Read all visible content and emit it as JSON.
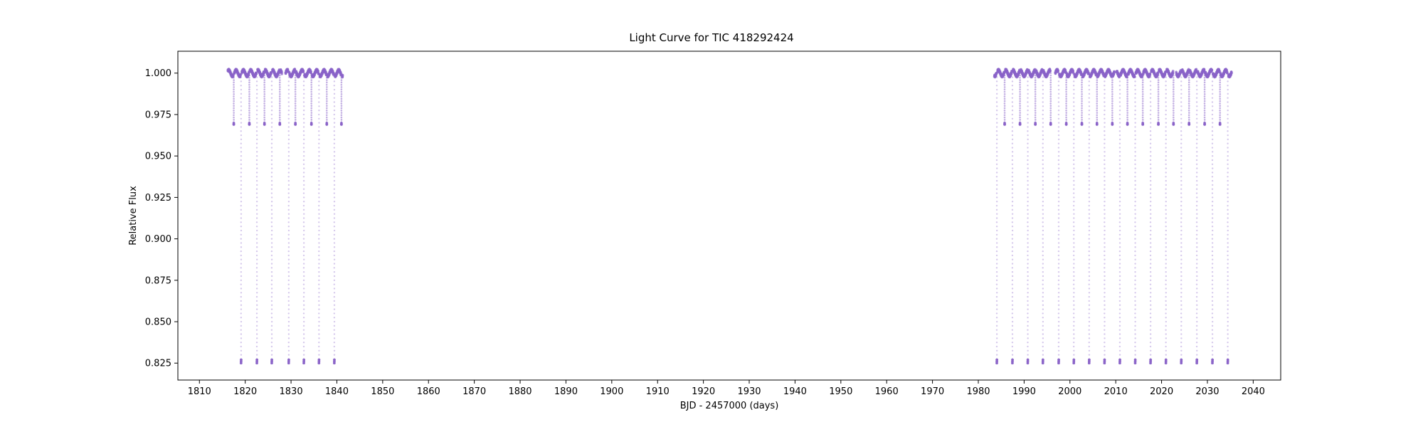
{
  "chart_data": {
    "type": "scatter",
    "title": "Light Curve for TIC 418292424",
    "xlabel": "BJD - 2457000 (days)",
    "ylabel": "Relative Flux",
    "xlim": [
      1805.3,
      2046.0
    ],
    "ylim": [
      0.8148,
      1.0132
    ],
    "xticks": [
      1810,
      1820,
      1830,
      1840,
      1850,
      1860,
      1870,
      1880,
      1890,
      1900,
      1910,
      1920,
      1930,
      1940,
      1950,
      1960,
      1970,
      1980,
      1990,
      2000,
      2010,
      2020,
      2030,
      2040
    ],
    "yticks": [
      "0.825",
      "0.850",
      "0.875",
      "0.900",
      "0.925",
      "0.950",
      "0.975",
      "1.000"
    ],
    "grid": false,
    "legend": "none",
    "color": "#8a63c8",
    "baseline_flux": 1.0,
    "variability_amplitude": 0.0018,
    "variability_period_days": 1.6,
    "primary_eclipse_depth_flux": 0.825,
    "secondary_eclipse_depth_flux": 0.969,
    "observing_segments": [
      [
        1816.2,
        1828.0
      ],
      [
        1828.8,
        1841.3
      ],
      [
        1983.5,
        1995.8
      ],
      [
        1996.8,
        2009.7
      ],
      [
        2010.2,
        2022.7
      ],
      [
        2023.2,
        2035.3
      ]
    ],
    "primary_eclipse_times": [
      1819.1,
      1822.55,
      1825.8,
      1829.5,
      1832.8,
      1836.1,
      1839.45,
      1984.05,
      1987.45,
      1990.8,
      1994.1,
      1997.55,
      2000.85,
      2004.2,
      2007.55,
      2010.9,
      2014.25,
      2017.6,
      2020.95,
      2024.3,
      2027.7,
      2031.1,
      2034.45
    ],
    "secondary_eclipse_times": [
      1817.5,
      1820.9,
      1824.2,
      1827.55,
      1830.95,
      1834.45,
      1837.8,
      1841.0,
      1985.75,
      1989.1,
      1992.45,
      1995.8,
      1999.2,
      2002.6,
      2005.9,
      2009.25,
      2012.55,
      2015.9,
      2019.3,
      2022.6,
      2026.0,
      2029.4,
      2032.75
    ]
  }
}
